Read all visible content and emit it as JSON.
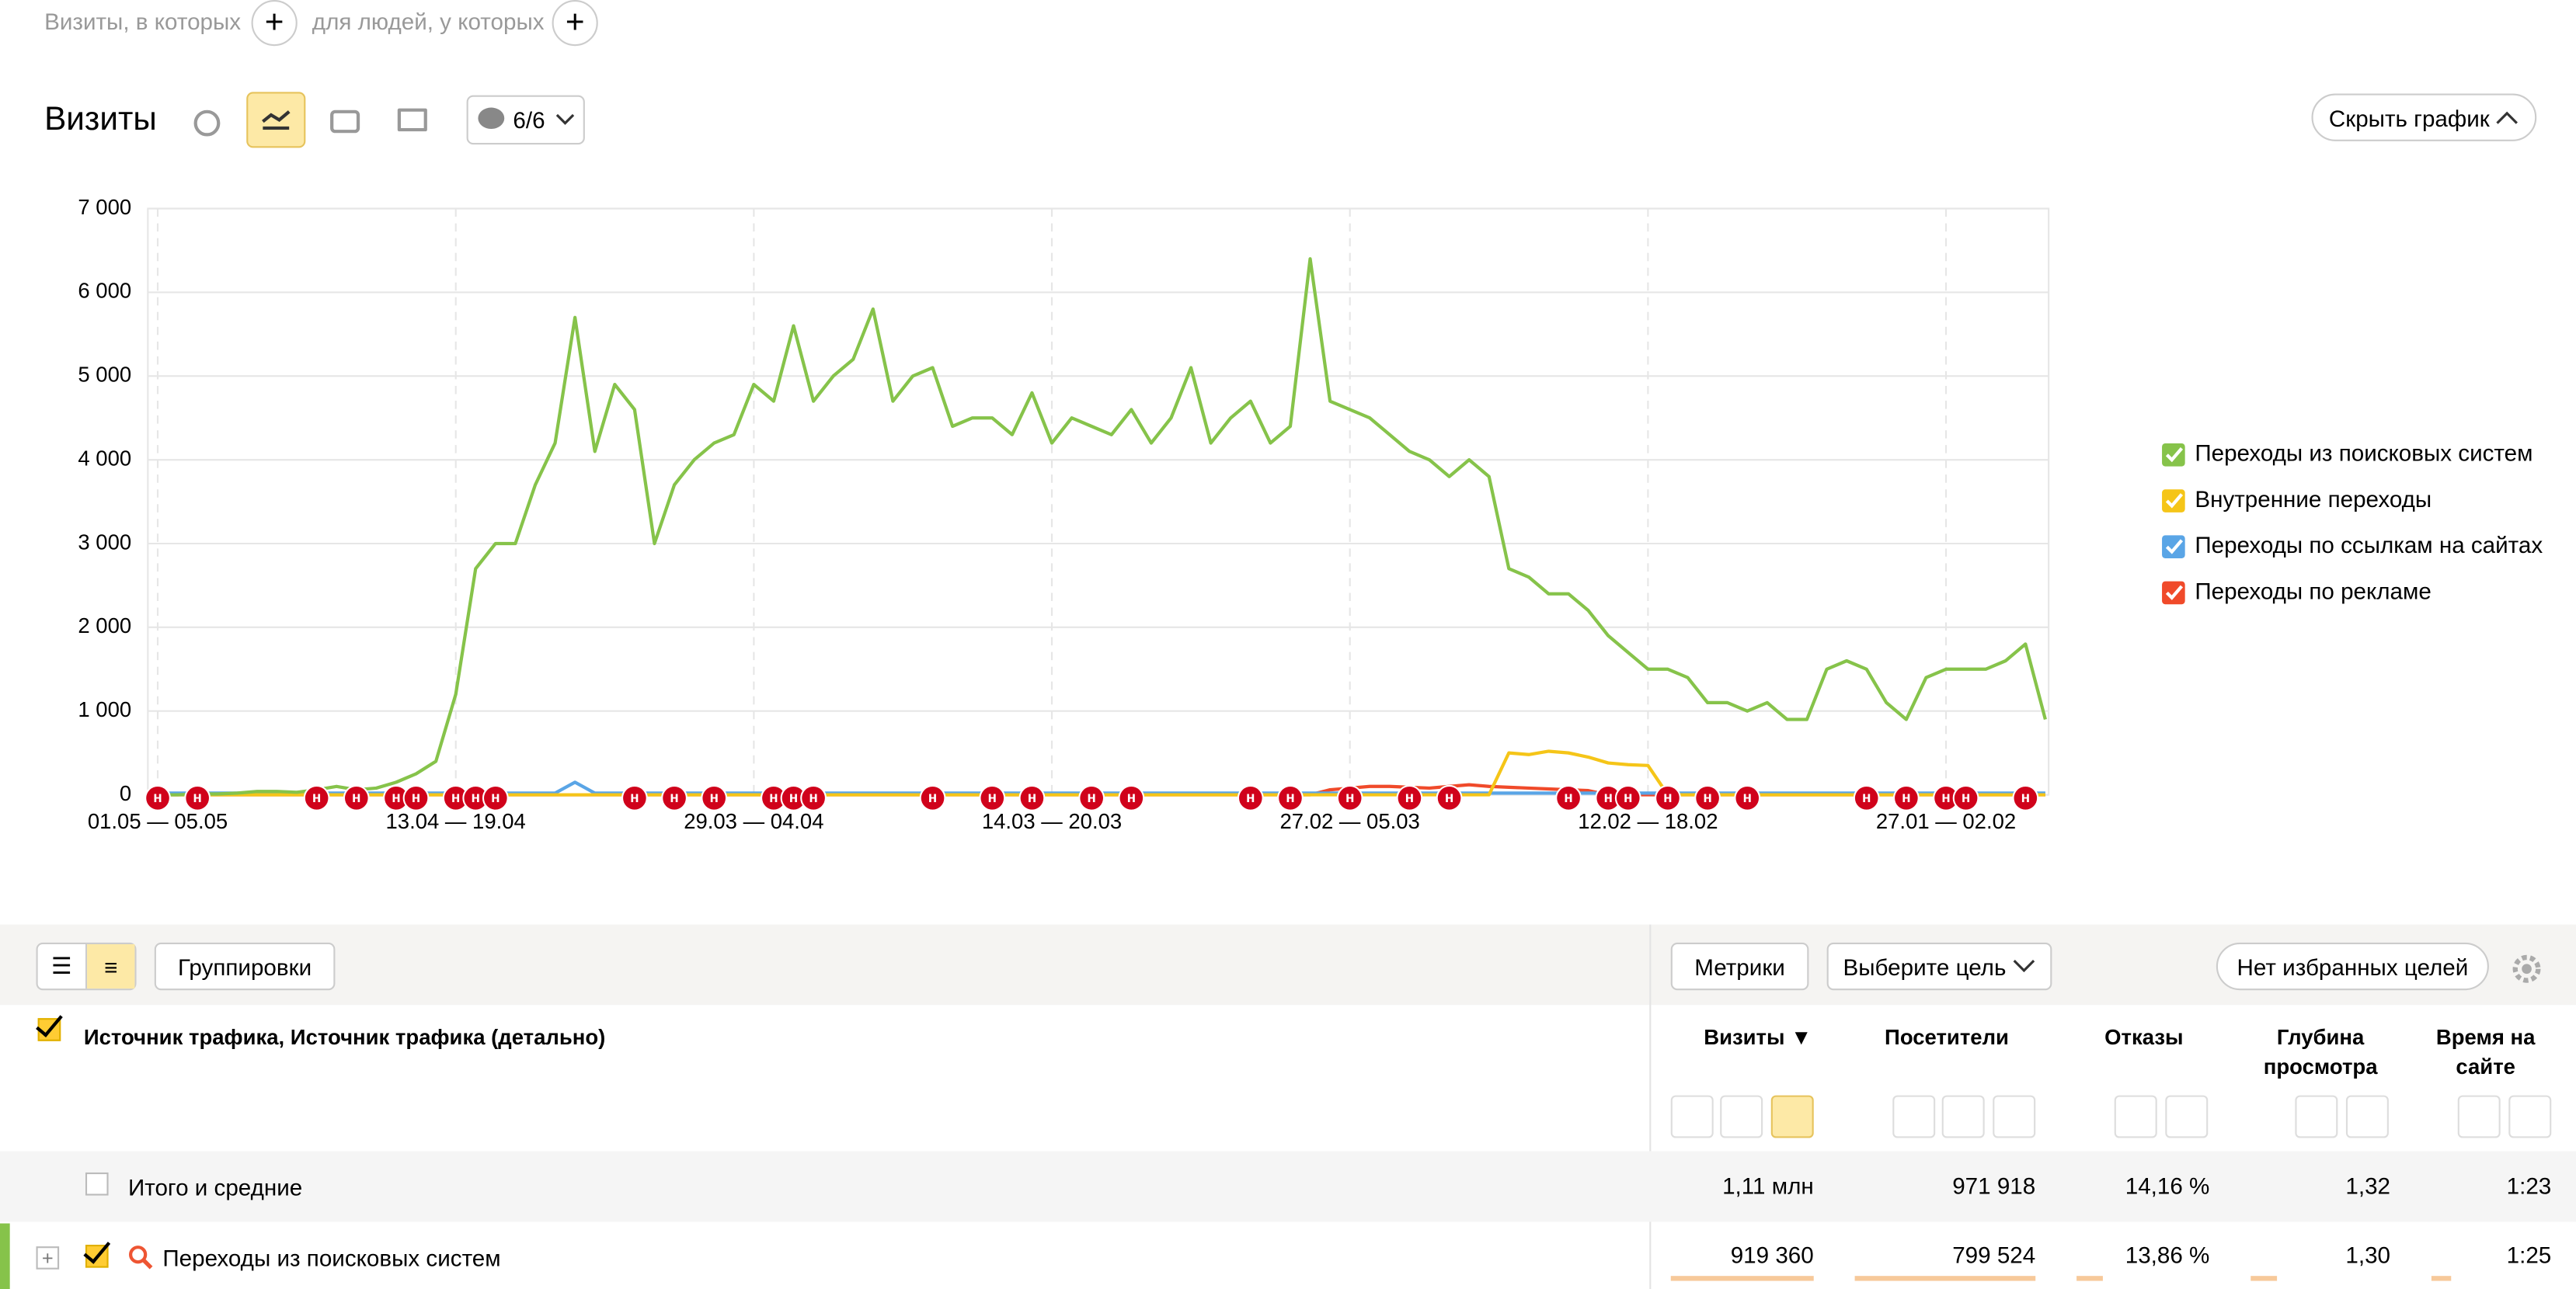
{
  "filters": {
    "visits_condition": "Визиты, в которых",
    "people_condition": "для людей, у которых"
  },
  "toolbar": {
    "title": "Визиты",
    "notes_counter": "6/6",
    "hide_chart": "Скрыть график"
  },
  "chart_data": {
    "type": "line",
    "categories": [
      "01.05 — 05.05",
      null,
      null,
      null,
      null,
      null,
      null,
      null,
      null,
      null,
      null,
      null,
      null,
      null,
      null,
      "13.04 — 19.04",
      null,
      null,
      null,
      null,
      null,
      null,
      null,
      null,
      null,
      null,
      null,
      null,
      null,
      null,
      "29.03 — 04.04",
      null,
      null,
      null,
      null,
      null,
      null,
      null,
      null,
      null,
      null,
      null,
      null,
      null,
      null,
      "14.03 — 20.03",
      null,
      null,
      null,
      null,
      null,
      null,
      null,
      null,
      null,
      null,
      null,
      null,
      null,
      null,
      "27.02 — 05.03",
      null,
      null,
      null,
      null,
      null,
      null,
      null,
      null,
      null,
      null,
      null,
      null,
      null,
      null,
      "12.02 — 18.02",
      null,
      null,
      null,
      null,
      null,
      null,
      null,
      null,
      null,
      null,
      null,
      null,
      null,
      null,
      "27.01 — 02.02",
      null,
      null,
      null,
      null,
      null
    ],
    "series": [
      {
        "name": "Переходы из поисковых систем",
        "color": "#86c34a",
        "values": [
          0,
          0,
          10,
          10,
          20,
          40,
          40,
          30,
          60,
          100,
          60,
          80,
          150,
          250,
          400,
          1200,
          2700,
          3000,
          3000,
          3700,
          4200,
          5700,
          4100,
          4900,
          4600,
          3000,
          3700,
          4000,
          4200,
          4300,
          4900,
          4700,
          5600,
          4700,
          5000,
          5200,
          5800,
          4700,
          5000,
          5100,
          4400,
          4500,
          4500,
          4300,
          4800,
          4200,
          4500,
          4400,
          4300,
          4600,
          4200,
          4500,
          5100,
          4200,
          4500,
          4700,
          4200,
          4400,
          6400,
          4700,
          4600,
          4500,
          4300,
          4100,
          4000,
          3800,
          4000,
          3800,
          2700,
          2600,
          2400,
          2400,
          2200,
          1900,
          1700,
          1500,
          1500,
          1400,
          1100,
          1100,
          1000,
          1100,
          900,
          900,
          1500,
          1600,
          1500,
          1100,
          900,
          1400,
          1500,
          1500,
          1500,
          1600,
          1800,
          900
        ]
      },
      {
        "name": "Внутренние переходы",
        "color": "#f5c518",
        "values": [
          0,
          0,
          0,
          0,
          0,
          0,
          0,
          0,
          0,
          0,
          0,
          0,
          0,
          0,
          0,
          0,
          0,
          0,
          0,
          0,
          0,
          0,
          0,
          0,
          0,
          0,
          0,
          0,
          0,
          0,
          0,
          0,
          0,
          0,
          0,
          0,
          0,
          0,
          0,
          0,
          0,
          0,
          0,
          0,
          0,
          0,
          0,
          0,
          0,
          0,
          0,
          0,
          0,
          0,
          0,
          0,
          0,
          0,
          0,
          0,
          0,
          0,
          0,
          0,
          0,
          0,
          0,
          0,
          500,
          480,
          520,
          500,
          450,
          380,
          360,
          350,
          0,
          0,
          0,
          0,
          0,
          0,
          0,
          0,
          0,
          0,
          0,
          0,
          0,
          0,
          0,
          0,
          0,
          0,
          0,
          0
        ]
      },
      {
        "name": "Переходы по ссылкам на сайтах",
        "color": "#5aa5e6",
        "values": [
          20,
          20,
          20,
          20,
          20,
          20,
          20,
          20,
          20,
          20,
          20,
          20,
          20,
          20,
          20,
          20,
          20,
          20,
          20,
          20,
          20,
          150,
          20,
          20,
          20,
          20,
          20,
          20,
          20,
          20,
          20,
          20,
          20,
          20,
          20,
          20,
          20,
          20,
          20,
          20,
          20,
          20,
          20,
          20,
          20,
          20,
          20,
          20,
          20,
          20,
          20,
          20,
          20,
          20,
          20,
          20,
          20,
          20,
          20,
          20,
          20,
          20,
          20,
          20,
          20,
          20,
          20,
          20,
          20,
          20,
          20,
          20,
          20,
          20,
          20,
          20,
          20,
          20,
          20,
          20,
          20,
          20,
          20,
          20,
          20,
          20,
          20,
          20,
          20,
          20,
          20,
          20,
          20,
          20,
          20,
          20
        ]
      },
      {
        "name": "Переходы по рекламе",
        "color": "#f04a2a",
        "values": [
          0,
          0,
          0,
          0,
          0,
          0,
          0,
          0,
          0,
          0,
          0,
          0,
          0,
          0,
          0,
          0,
          0,
          0,
          0,
          0,
          0,
          0,
          0,
          0,
          0,
          0,
          0,
          0,
          0,
          0,
          0,
          0,
          0,
          0,
          0,
          0,
          0,
          0,
          0,
          0,
          0,
          0,
          0,
          0,
          0,
          0,
          0,
          0,
          0,
          0,
          0,
          0,
          0,
          0,
          0,
          0,
          0,
          0,
          0,
          60,
          80,
          100,
          100,
          90,
          80,
          100,
          120,
          100,
          90,
          80,
          70,
          60,
          50,
          0,
          0,
          0,
          0,
          0,
          0,
          0,
          0,
          0,
          0,
          0,
          0,
          0,
          0,
          0,
          0,
          0,
          0,
          0,
          0,
          0,
          0,
          0
        ]
      }
    ],
    "ylim": [
      0,
      7000
    ],
    "yticks": [
      0,
      {
        "value": 1000,
        "label": "1 000"
      },
      {
        "value": 2000,
        "label": "2 000"
      },
      {
        "value": 3000,
        "label": "3 000"
      },
      {
        "value": 4000,
        "label": "4 000"
      },
      {
        "value": 5000,
        "label": "5 000"
      },
      {
        "value": 6000,
        "label": "6 000"
      },
      {
        "value": 7000,
        "label": "7 000"
      }
    ],
    "grid": true,
    "legend": "right",
    "annotations": [
      {
        "x": 0,
        "text": "н"
      },
      {
        "x": 2,
        "text": "н"
      },
      {
        "x": 8,
        "text": "н"
      },
      {
        "x": 10,
        "text": "н"
      },
      {
        "x": 12,
        "text": "н"
      },
      {
        "x": 13,
        "text": "н"
      },
      {
        "x": 15,
        "text": "н"
      },
      {
        "x": 16,
        "text": "н"
      },
      {
        "x": 17,
        "text": "н"
      },
      {
        "x": 24,
        "text": "н"
      },
      {
        "x": 26,
        "text": "н"
      },
      {
        "x": 28,
        "text": "н"
      },
      {
        "x": 31,
        "text": "н"
      },
      {
        "x": 32,
        "text": "н"
      },
      {
        "x": 33,
        "text": "н"
      },
      {
        "x": 39,
        "text": "н"
      },
      {
        "x": 42,
        "text": "н"
      },
      {
        "x": 44,
        "text": "н"
      },
      {
        "x": 47,
        "text": "н"
      },
      {
        "x": 49,
        "text": "н"
      },
      {
        "x": 55,
        "text": "н"
      },
      {
        "x": 57,
        "text": "н"
      },
      {
        "x": 60,
        "text": "н"
      },
      {
        "x": 63,
        "text": "н"
      },
      {
        "x": 65,
        "text": "н"
      },
      {
        "x": 71,
        "text": "н"
      },
      {
        "x": 73,
        "text": "н"
      },
      {
        "x": 74,
        "text": "н"
      },
      {
        "x": 76,
        "text": "н"
      },
      {
        "x": 78,
        "text": "н"
      },
      {
        "x": 80,
        "text": "н"
      },
      {
        "x": 86,
        "text": "н"
      },
      {
        "x": 88,
        "text": "н"
      },
      {
        "x": 90,
        "text": "н"
      },
      {
        "x": 91,
        "text": "н"
      },
      {
        "x": 94,
        "text": "н"
      }
    ]
  },
  "report_toolbar": {
    "groupings": "Группировки",
    "metrics": "Метрики",
    "choose_goal": "Выберите цель",
    "no_favorite_goals": "Нет избранных целей"
  },
  "table": {
    "dimension": "Источник трафика, Источник трафика (детально)",
    "columns": [
      "Визиты",
      "Посетители",
      "Отказы",
      "Глубина просмотра",
      "Время на сайте"
    ],
    "rows": [
      [
        "Итого и средние",
        "1,11 млн",
        "971 918",
        "14,16 %",
        "1,32",
        "1:23"
      ],
      [
        "Переходы из поисковых систем",
        "919 360",
        "799 524",
        "13,86 %",
        "1,30",
        "1:25"
      ]
    ]
  }
}
